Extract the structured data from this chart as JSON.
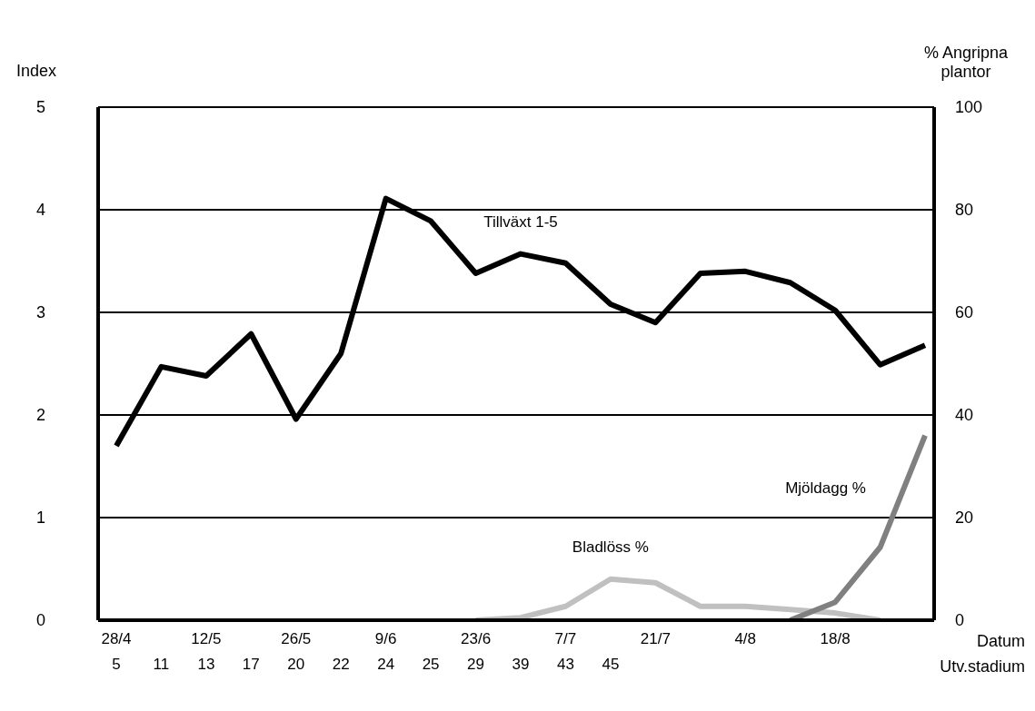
{
  "chart_data": {
    "type": "line",
    "categories": [
      "28/4\n5",
      "\n11",
      "12/5\n13",
      "\n17",
      "26/5\n20",
      "\n22",
      "9/6\n24",
      "\n25",
      "23/6\n29",
      "\n39",
      "7/7\n43",
      "\n45",
      "21/7",
      null,
      "4/8",
      null,
      "18/8",
      null,
      null
    ],
    "series": [
      {
        "name": "Tillväxt 1-5",
        "color": "#000000",
        "values": [
          1.7,
          2.47,
          2.38,
          2.79,
          1.96,
          2.6,
          4.11,
          3.89,
          3.38,
          3.57,
          3.48,
          3.08,
          2.9,
          3.38,
          3.4,
          3.29,
          3.02,
          2.49,
          2.68
        ]
      },
      {
        "name": "Bladlöss %",
        "color": "#c0c0c0",
        "axis": "y2",
        "values": [
          null,
          null,
          null,
          null,
          null,
          null,
          null,
          null,
          0,
          0.5,
          2.7,
          8,
          7.3,
          2.7,
          2.7,
          2.1,
          1.4,
          0,
          null
        ]
      },
      {
        "name": "Mjöldagg %",
        "color": "#808080",
        "axis": "y2",
        "values": [
          null,
          null,
          null,
          null,
          null,
          null,
          null,
          null,
          null,
          null,
          null,
          null,
          null,
          null,
          null,
          0,
          3.5,
          14.2,
          36
        ]
      }
    ],
    "ylabel": "Index",
    "y2label": "% Angripna plantor",
    "xlabel": "Datum",
    "annotations": [
      "Utv.stadium"
    ],
    "ylim": [
      0,
      5
    ],
    "yticks": [
      0,
      1,
      2,
      3,
      4,
      5
    ],
    "y2lim": [
      0,
      100
    ],
    "y2ticks": [
      0,
      20,
      40,
      60,
      80,
      100
    ],
    "grid": "y",
    "marker": "none",
    "line_style": "solid"
  }
}
